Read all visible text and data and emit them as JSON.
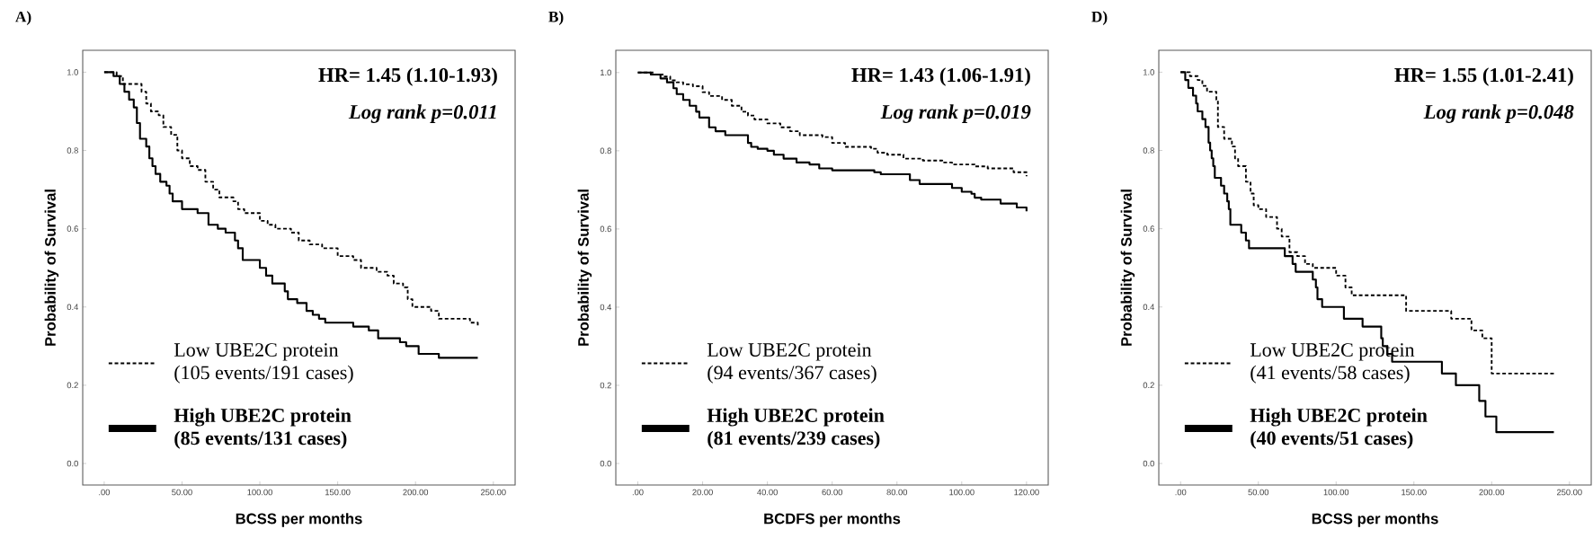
{
  "chart_data": [
    {
      "type": "step",
      "title": "A)",
      "xlabel": "BCSS per months",
      "ylabel": "Probability of Survival",
      "xlim": [
        -13.8,
        264
      ],
      "ylim": [
        -0.055,
        1.056
      ],
      "xticks": [
        {
          "value": 0,
          "label": ".00"
        },
        {
          "value": 50,
          "label": "50.00"
        },
        {
          "value": 100,
          "label": "100.00"
        },
        {
          "value": 150,
          "label": "150.00"
        },
        {
          "value": 200,
          "label": "200.00"
        },
        {
          "value": 250,
          "label": "250.00"
        }
      ],
      "yticks": [
        {
          "value": 0,
          "label": "0.0"
        },
        {
          "value": 0.2,
          "label": "0.2"
        },
        {
          "value": 0.4,
          "label": "0.4"
        },
        {
          "value": 0.6,
          "label": "0.6"
        },
        {
          "value": 0.8,
          "label": "0.8"
        },
        {
          "value": 1,
          "label": "1.0"
        }
      ],
      "annotations": [
        "HR= 1.45 (1.10-1.93)",
        "Log rank p=0.011"
      ],
      "legend": "bottom",
      "series": [
        {
          "name": "Low UBE2C protein (105 events/191 cases)",
          "color": "#000000",
          "line_style": "dashed",
          "x": [
            0,
            8,
            12,
            24,
            27,
            30,
            35,
            38,
            43,
            47,
            50,
            55,
            60,
            65,
            70,
            74,
            83,
            86,
            90,
            100,
            105,
            110,
            120,
            125,
            132,
            140,
            150,
            160,
            165,
            175,
            182,
            186,
            192,
            195,
            198,
            210,
            215,
            235,
            240
          ],
          "values": [
            1.0,
            0.99,
            0.97,
            0.95,
            0.92,
            0.9,
            0.89,
            0.86,
            0.84,
            0.8,
            0.78,
            0.76,
            0.75,
            0.72,
            0.7,
            0.68,
            0.67,
            0.65,
            0.64,
            0.62,
            0.61,
            0.6,
            0.59,
            0.57,
            0.56,
            0.55,
            0.53,
            0.52,
            0.5,
            0.49,
            0.48,
            0.46,
            0.45,
            0.42,
            0.4,
            0.39,
            0.37,
            0.36,
            0.35
          ]
        },
        {
          "name": "High UBE2C protein (85 events/131 cases)",
          "color": "#000000",
          "line_style": "solid",
          "x": [
            0,
            6,
            10,
            13,
            16,
            19,
            21,
            23,
            27,
            29,
            31,
            33,
            36,
            40,
            42,
            44,
            50,
            60,
            67,
            73,
            78,
            84,
            86,
            89,
            100,
            104,
            108,
            116,
            118,
            124,
            130,
            134,
            138,
            142,
            160,
            170,
            176,
            190,
            194,
            202,
            215,
            240
          ],
          "values": [
            1.0,
            0.99,
            0.97,
            0.95,
            0.93,
            0.91,
            0.87,
            0.83,
            0.81,
            0.78,
            0.76,
            0.74,
            0.72,
            0.71,
            0.69,
            0.67,
            0.65,
            0.64,
            0.61,
            0.6,
            0.59,
            0.57,
            0.55,
            0.52,
            0.5,
            0.48,
            0.46,
            0.44,
            0.42,
            0.41,
            0.39,
            0.38,
            0.37,
            0.36,
            0.35,
            0.34,
            0.32,
            0.31,
            0.3,
            0.28,
            0.27,
            0.27
          ]
        }
      ]
    },
    {
      "type": "step",
      "title": "B)",
      "xlabel": "BCDFS per months",
      "ylabel": "Probability of Survival",
      "xlim": [
        -6.8,
        126.7
      ],
      "ylim": [
        -0.055,
        1.057
      ],
      "xticks": [
        {
          "value": 0,
          "label": ".00"
        },
        {
          "value": 20,
          "label": "20.00"
        },
        {
          "value": 40,
          "label": "40.00"
        },
        {
          "value": 60,
          "label": "60.00"
        },
        {
          "value": 80,
          "label": "80.00"
        },
        {
          "value": 100,
          "label": "100.00"
        },
        {
          "value": 120,
          "label": "120.00"
        }
      ],
      "yticks": [
        {
          "value": 0,
          "label": "0.0"
        },
        {
          "value": 0.2,
          "label": "0.2"
        },
        {
          "value": 0.4,
          "label": "0.4"
        },
        {
          "value": 0.6,
          "label": "0.6"
        },
        {
          "value": 0.8,
          "label": "0.8"
        },
        {
          "value": 1,
          "label": "1.0"
        }
      ],
      "annotations": [
        "HR= 1.43 (1.06-1.91)",
        "Log rank p=0.019"
      ],
      "legend": "bottom",
      "series": [
        {
          "name": "Low UBE2C protein (94 events/367 cases)",
          "color": "#000000",
          "line_style": "dashed",
          "x": [
            0,
            5,
            8,
            10,
            12,
            14,
            17,
            20,
            22,
            26,
            29,
            32,
            34,
            36,
            40,
            44,
            47,
            50,
            57,
            60,
            64,
            72,
            74,
            77,
            82,
            88,
            94,
            97,
            104,
            108,
            116,
            120
          ],
          "values": [
            1.0,
            0.995,
            0.99,
            0.98,
            0.975,
            0.97,
            0.965,
            0.95,
            0.94,
            0.93,
            0.915,
            0.9,
            0.89,
            0.88,
            0.87,
            0.86,
            0.85,
            0.84,
            0.835,
            0.82,
            0.81,
            0.805,
            0.795,
            0.79,
            0.78,
            0.775,
            0.77,
            0.765,
            0.76,
            0.755,
            0.745,
            0.735
          ]
        },
        {
          "name": "High UBE2C protein (81 events/239 cases)",
          "color": "#000000",
          "line_style": "solid",
          "x": [
            0,
            4,
            7,
            9,
            11,
            12,
            14,
            16,
            18,
            19,
            22,
            24,
            27,
            34,
            35,
            37,
            40,
            42,
            45,
            49,
            53,
            56,
            60,
            73,
            75,
            84,
            87,
            97,
            100,
            103,
            104,
            106,
            112,
            117,
            120
          ],
          "values": [
            1.0,
            0.995,
            0.985,
            0.975,
            0.96,
            0.945,
            0.93,
            0.915,
            0.9,
            0.885,
            0.86,
            0.85,
            0.84,
            0.82,
            0.81,
            0.805,
            0.8,
            0.79,
            0.78,
            0.77,
            0.765,
            0.755,
            0.75,
            0.745,
            0.74,
            0.725,
            0.715,
            0.705,
            0.695,
            0.69,
            0.68,
            0.675,
            0.665,
            0.655,
            0.645
          ]
        }
      ]
    },
    {
      "type": "step",
      "title": "D)",
      "xlabel": "BCSS per months",
      "ylabel": "Probability of Survival",
      "xlim": [
        -14,
        264
      ],
      "ylim": [
        -0.055,
        1.056
      ],
      "xticks": [
        {
          "value": 0,
          "label": ".00"
        },
        {
          "value": 50,
          "label": "50.00"
        },
        {
          "value": 100,
          "label": "100.00"
        },
        {
          "value": 150,
          "label": "150.00"
        },
        {
          "value": 200,
          "label": "200.00"
        },
        {
          "value": 250,
          "label": "250.00"
        }
      ],
      "yticks": [
        {
          "value": 0,
          "label": "0.0"
        },
        {
          "value": 0.2,
          "label": "0.2"
        },
        {
          "value": 0.4,
          "label": "0.4"
        },
        {
          "value": 0.6,
          "label": "0.6"
        },
        {
          "value": 0.8,
          "label": "0.8"
        },
        {
          "value": 1,
          "label": "1.0"
        }
      ],
      "annotations": [
        "HR= 1.55 (1.01-2.41)",
        "Log rank p=0.048"
      ],
      "legend": "bottom",
      "series": [
        {
          "name": "Low UBE2C protein (41 events/58 cases)",
          "color": "#000000",
          "line_style": "dashed",
          "x": [
            0,
            6,
            11,
            14,
            17,
            23,
            24,
            28,
            33,
            35,
            37,
            42,
            45,
            47,
            50,
            55,
            62,
            65,
            70,
            75,
            80,
            85,
            100,
            106,
            110,
            145,
            174,
            187,
            194,
            200,
            240
          ],
          "values": [
            1.0,
            0.99,
            0.98,
            0.965,
            0.95,
            0.93,
            0.86,
            0.83,
            0.81,
            0.78,
            0.76,
            0.72,
            0.69,
            0.66,
            0.65,
            0.63,
            0.6,
            0.58,
            0.54,
            0.53,
            0.51,
            0.5,
            0.48,
            0.45,
            0.43,
            0.39,
            0.37,
            0.34,
            0.32,
            0.23,
            0.23
          ]
        },
        {
          "name": "High UBE2C protein (40 events/51 cases)",
          "color": "#000000",
          "line_style": "solid",
          "x": [
            0,
            3,
            5,
            8,
            10,
            11,
            14,
            16,
            18,
            19,
            20,
            21,
            22,
            26,
            28,
            30,
            31,
            32,
            39,
            42,
            44,
            67,
            72,
            74,
            85,
            87,
            88,
            91,
            105,
            117,
            129,
            130,
            133,
            136,
            168,
            177,
            192,
            196,
            203,
            240
          ],
          "values": [
            1.0,
            0.98,
            0.96,
            0.94,
            0.92,
            0.9,
            0.88,
            0.86,
            0.82,
            0.8,
            0.78,
            0.76,
            0.73,
            0.71,
            0.69,
            0.67,
            0.65,
            0.61,
            0.59,
            0.57,
            0.55,
            0.53,
            0.51,
            0.49,
            0.47,
            0.45,
            0.42,
            0.4,
            0.37,
            0.35,
            0.32,
            0.3,
            0.28,
            0.26,
            0.23,
            0.2,
            0.16,
            0.12,
            0.08,
            0.08
          ]
        }
      ]
    }
  ]
}
